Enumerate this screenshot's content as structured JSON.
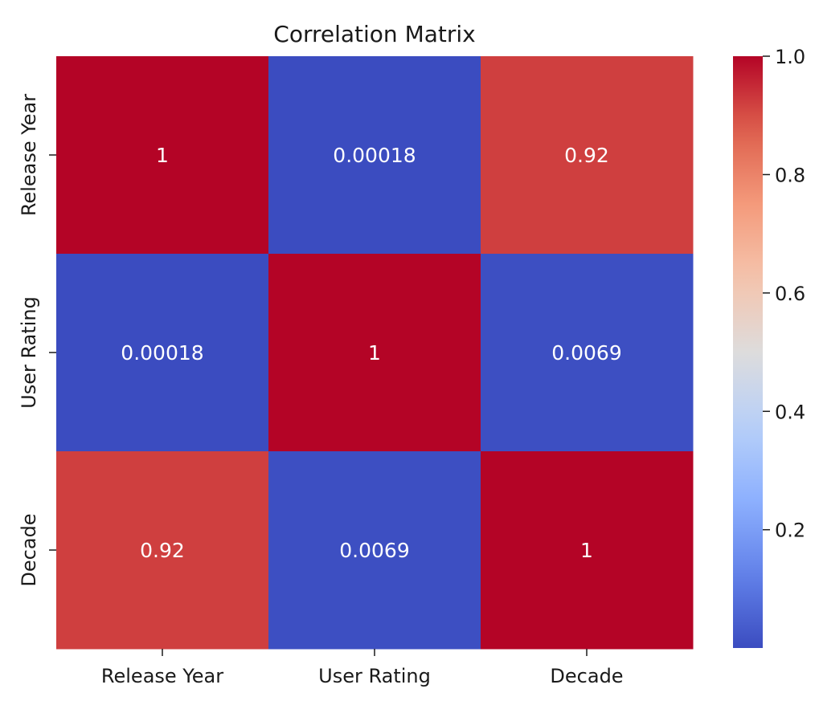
{
  "chart_data": {
    "type": "heatmap",
    "title": "Correlation Matrix",
    "x_labels": [
      "Release Year",
      "User Rating",
      "Decade"
    ],
    "y_labels": [
      "Release Year",
      "User Rating",
      "Decade"
    ],
    "matrix": [
      [
        1,
        0.00018,
        0.92
      ],
      [
        0.00018,
        1,
        0.0069
      ],
      [
        0.92,
        0.0069,
        1
      ]
    ],
    "annotations": [
      [
        "1",
        "0.00018",
        "0.92"
      ],
      [
        "0.00018",
        "1",
        "0.0069"
      ],
      [
        "0.92",
        "0.0069",
        "1"
      ]
    ],
    "colormap": "coolwarm",
    "vmin": 0.00018,
    "vmax": 1,
    "colorbar": {
      "ticks": [
        0.2,
        0.4,
        0.6,
        0.8,
        1.0
      ],
      "tick_labels": [
        "0.2",
        "0.4",
        "0.6",
        "0.8",
        "1.0"
      ]
    },
    "annotation_color": "#ffffff",
    "grid": false
  }
}
